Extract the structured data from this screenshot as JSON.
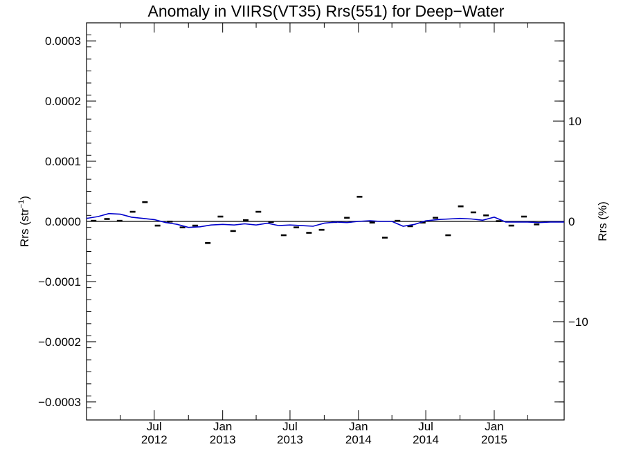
{
  "chart_data": {
    "type": "scatter",
    "title": "Anomaly in VIIRS(VT35) Rrs(551) for Deep−Water",
    "ylabel_left": "Rrs (str",
    "ylabel_left_sup": "−1",
    "ylabel_left_close": ")",
    "ylabel_right": "Rrs (%)",
    "xlim": [
      "2012-01-01",
      "2015-07-08"
    ],
    "ylim": [
      -0.00033,
      0.00033
    ],
    "ylim_right_percent": [
      -19.8,
      19.8
    ],
    "grid": false,
    "yticks_left": [
      {
        "value": 0.0003,
        "label": "0.0003"
      },
      {
        "value": 0.0002,
        "label": "0.0002"
      },
      {
        "value": 0.0001,
        "label": "0.0001"
      },
      {
        "value": 0.0,
        "label": "0.0000"
      },
      {
        "value": -0.0001,
        "label": "−0.0001"
      },
      {
        "value": -0.0002,
        "label": "−0.0002"
      },
      {
        "value": -0.0003,
        "label": "−0.0003"
      }
    ],
    "yticks_right": [
      {
        "value": 10,
        "label": "10"
      },
      {
        "value": 0,
        "label": "0"
      },
      {
        "value": -10,
        "label": "−10"
      }
    ],
    "xticks": [
      {
        "date": "2012-07-01",
        "month": "Jul",
        "year": "2012"
      },
      {
        "date": "2013-01-01",
        "month": "Jan",
        "year": "2013"
      },
      {
        "date": "2013-07-01",
        "month": "Jul",
        "year": "2013"
      },
      {
        "date": "2014-01-01",
        "month": "Jan",
        "year": "2014"
      },
      {
        "date": "2014-07-01",
        "month": "Jul",
        "year": "2014"
      },
      {
        "date": "2015-01-01",
        "month": "Jan",
        "year": "2015"
      }
    ],
    "zero_line": 0,
    "series": [
      {
        "kind": "points",
        "color": "#000000",
        "points": [
          [
            "2012-01-20",
            1e-06
          ],
          [
            "2012-02-25",
            4e-06
          ],
          [
            "2012-03-30",
            1e-06
          ],
          [
            "2012-05-04",
            1.6e-05
          ],
          [
            "2012-06-06",
            3.2e-05
          ],
          [
            "2012-07-10",
            -7e-06
          ],
          [
            "2012-08-12",
            -3e-07
          ],
          [
            "2012-09-15",
            -1e-05
          ],
          [
            "2012-10-19",
            -7e-06
          ],
          [
            "2012-11-22",
            -3.6e-05
          ],
          [
            "2012-12-26",
            8e-06
          ],
          [
            "2013-01-29",
            -1.6e-05
          ],
          [
            "2013-03-04",
            2e-06
          ],
          [
            "2013-04-07",
            1.6e-05
          ],
          [
            "2013-05-11",
            -1e-06
          ],
          [
            "2013-06-14",
            -2.3e-05
          ],
          [
            "2013-07-18",
            -1e-05
          ],
          [
            "2013-08-21",
            -1.9e-05
          ],
          [
            "2013-09-24",
            -1.4e-05
          ],
          [
            "2013-10-28",
            -1e-06
          ],
          [
            "2013-12-01",
            6e-06
          ],
          [
            "2014-01-04",
            4.1e-05
          ],
          [
            "2014-02-07",
            -2e-06
          ],
          [
            "2014-03-13",
            -2.7e-05
          ],
          [
            "2014-04-16",
            1e-06
          ],
          [
            "2014-05-20",
            -8e-06
          ],
          [
            "2014-06-23",
            -2e-06
          ],
          [
            "2014-07-27",
            6e-06
          ],
          [
            "2014-08-30",
            -2.3e-05
          ],
          [
            "2014-10-03",
            2.5e-05
          ],
          [
            "2014-11-06",
            1.5e-05
          ],
          [
            "2014-12-10",
            1e-05
          ],
          [
            "2015-01-13",
            5e-07
          ],
          [
            "2015-02-16",
            -7e-06
          ],
          [
            "2015-03-22",
            8e-06
          ],
          [
            "2015-04-25",
            -5e-06
          ]
        ]
      },
      {
        "kind": "line",
        "color": "#0000cc",
        "points": [
          [
            "2012-01-01",
            5e-06
          ],
          [
            "2012-02-01",
            8e-06
          ],
          [
            "2012-03-01",
            1.3e-05
          ],
          [
            "2012-04-01",
            1.2e-05
          ],
          [
            "2012-05-01",
            7e-06
          ],
          [
            "2012-06-01",
            5e-06
          ],
          [
            "2012-07-01",
            3e-06
          ],
          [
            "2012-08-01",
            -2e-06
          ],
          [
            "2012-09-01",
            -5e-06
          ],
          [
            "2012-10-01",
            -1e-05
          ],
          [
            "2012-11-01",
            -9e-06
          ],
          [
            "2012-12-01",
            -6e-06
          ],
          [
            "2013-01-01",
            -5e-06
          ],
          [
            "2013-02-01",
            -6e-06
          ],
          [
            "2013-03-01",
            -4e-06
          ],
          [
            "2013-04-01",
            -6e-06
          ],
          [
            "2013-05-01",
            -3e-06
          ],
          [
            "2013-06-01",
            -7e-06
          ],
          [
            "2013-07-01",
            -6e-06
          ],
          [
            "2013-08-01",
            -7e-06
          ],
          [
            "2013-09-01",
            -8e-06
          ],
          [
            "2013-10-01",
            -3e-06
          ],
          [
            "2013-11-01",
            -1e-06
          ],
          [
            "2013-12-01",
            -2e-06
          ],
          [
            "2014-01-01",
            0.0
          ],
          [
            "2014-02-01",
            1e-06
          ],
          [
            "2014-03-01",
            0.0
          ],
          [
            "2014-04-01",
            0.0
          ],
          [
            "2014-05-01",
            -8e-06
          ],
          [
            "2014-06-01",
            -5e-06
          ],
          [
            "2014-07-01",
            1e-06
          ],
          [
            "2014-08-01",
            3e-06
          ],
          [
            "2014-09-01",
            4e-06
          ],
          [
            "2014-10-01",
            5e-06
          ],
          [
            "2014-11-01",
            4e-06
          ],
          [
            "2014-12-01",
            2e-06
          ],
          [
            "2015-01-01",
            7e-06
          ],
          [
            "2015-02-01",
            -1e-06
          ],
          [
            "2015-03-01",
            -1e-06
          ],
          [
            "2015-04-01",
            -1e-06
          ],
          [
            "2015-05-01",
            -2e-06
          ],
          [
            "2015-06-01",
            -1e-06
          ],
          [
            "2015-07-08",
            -1e-06
          ]
        ]
      }
    ]
  }
}
